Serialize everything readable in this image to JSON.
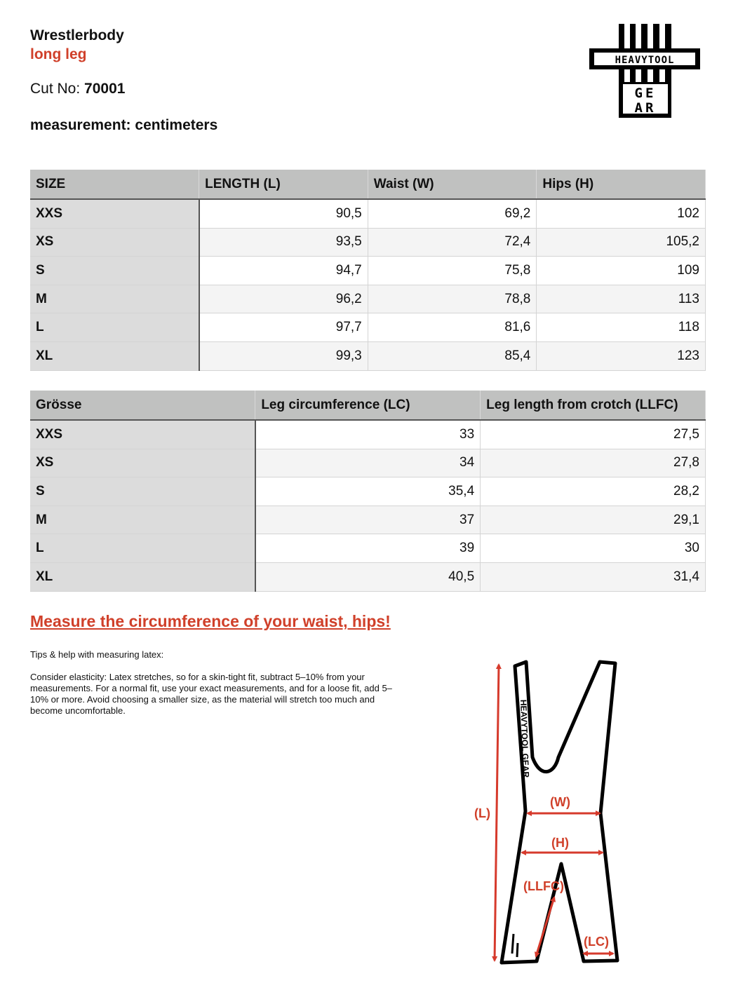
{
  "header": {
    "title": "Wrestlerbody",
    "subtitle": "long leg",
    "cut_label": "Cut No:",
    "cut_no": "70001",
    "measurement": "measurement: centimeters"
  },
  "logo": {
    "text_top": "HEAVYTOOL",
    "text_bottom": "GEAR"
  },
  "table1": {
    "headers": [
      "SIZE",
      "LENGTH (L)",
      "Waist (W)",
      "Hips (H)"
    ],
    "rows": [
      [
        "XXS",
        "90,5",
        "69,2",
        "102"
      ],
      [
        "XS",
        "93,5",
        "72,4",
        "105,2"
      ],
      [
        "S",
        "94,7",
        "75,8",
        "109"
      ],
      [
        "M",
        "96,2",
        "78,8",
        "113"
      ],
      [
        "L",
        "97,7",
        "81,6",
        "118"
      ],
      [
        "XL",
        "99,3",
        "85,4",
        "123"
      ]
    ]
  },
  "table2": {
    "headers": [
      "Grösse",
      "Leg circumference (LC)",
      "Leg length from crotch (LLFC)"
    ],
    "rows": [
      [
        "XXS",
        "33",
        "27,5"
      ],
      [
        "XS",
        "34",
        "27,8"
      ],
      [
        "S",
        "35,4",
        "28,2"
      ],
      [
        "M",
        "37",
        "29,1"
      ],
      [
        "L",
        "39",
        "30"
      ],
      [
        "XL",
        "40,5",
        "31,4"
      ]
    ]
  },
  "instructions": {
    "heading": "Measure the circumference of your waist, hips!",
    "tips_title": "Tips & help with measuring latex:",
    "tips_body": "Consider elasticity: Latex stretches, so for a skin-tight fit, subtract 5–10% from your measurements. For a normal fit, use your exact measurements, and for a loose fit, add 5–10% or more.  Avoid choosing a smaller size, as the material will stretch too much and become uncomfortable."
  },
  "diagram": {
    "labels": {
      "L": "(L)",
      "W": "(W)",
      "H": "(H)",
      "LLFC": "(LLFC)",
      "LC": "(LC)"
    },
    "garment_text": "HEAVYTOOL GEAR",
    "accent_color": "#d63a2c"
  }
}
